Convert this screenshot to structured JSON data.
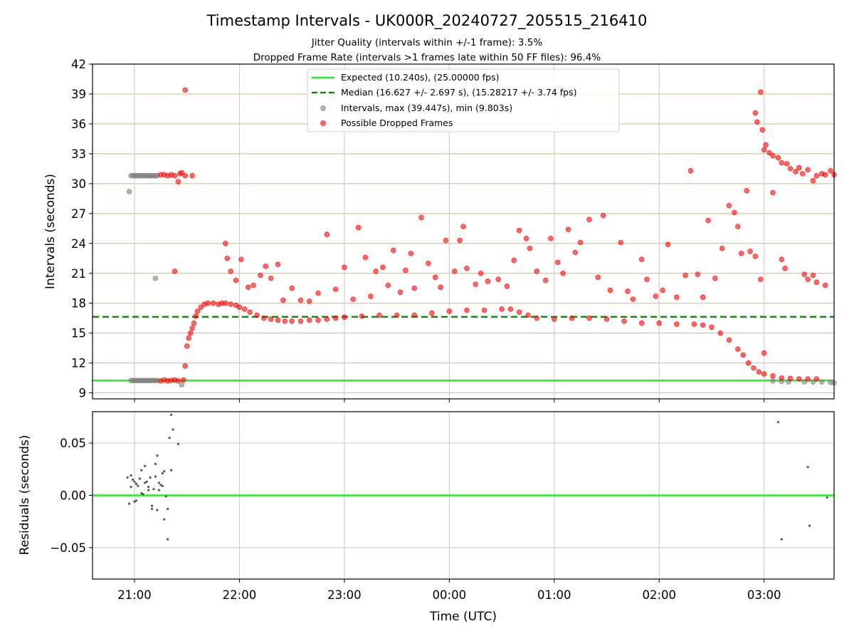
{
  "figure": {
    "title": "Timestamp Intervals - UK000R_20240727_205515_216410",
    "subtitle_1": "Jitter Quality (intervals within +/-1 frame): 3.5%",
    "subtitle_2": "Dropped Frame Rate (intervals >1 frames late within 50 FF files): 96.4%"
  },
  "colors": {
    "expected": "#22ee22",
    "median": "#118811",
    "intervals": "#808080",
    "dropped": "#ff0000",
    "hgrid": "#d4b870",
    "vgrid": "#c8c8c8"
  },
  "chart_data": [
    {
      "type": "scatter",
      "ylabel": "Intervals (seconds)",
      "xlim": [
        "20:36",
        "03:40"
      ],
      "ylim": [
        8.4,
        42
      ],
      "yticks": [
        "9",
        "12",
        "15",
        "18",
        "21",
        "24",
        "27",
        "30",
        "33",
        "36",
        "39",
        "42"
      ],
      "xticks": [
        "21:00",
        "22:00",
        "23:00",
        "00:00",
        "01:00",
        "02:00",
        "03:00"
      ],
      "grid": "horizontal and vertical",
      "legend_position": "upper-center",
      "legend": [
        "Expected (10.240s), (25.00000 fps)",
        "Median (16.627 +/- 2.697 s), (15.28217 +/- 3.74 fps)",
        "Intervals, max (39.447s), min (9.803s)",
        "Possible Dropped Frames"
      ],
      "expected_line": 10.24,
      "median_line": 16.627,
      "interval_points": [
        [
          "20:57",
          29.2
        ],
        [
          "20:58",
          30.8
        ],
        [
          "20:59",
          30.8
        ],
        [
          "21:00",
          30.8
        ],
        [
          "21:01",
          30.8
        ],
        [
          "21:02",
          30.8
        ],
        [
          "21:03",
          30.8
        ],
        [
          "21:04",
          30.8
        ],
        [
          "21:05",
          30.8
        ],
        [
          "21:06",
          30.8
        ],
        [
          "21:07",
          30.8
        ],
        [
          "21:08",
          30.8
        ],
        [
          "21:09",
          30.8
        ],
        [
          "21:10",
          30.8
        ],
        [
          "21:11",
          30.8
        ],
        [
          "21:12",
          30.8
        ],
        [
          "21:13",
          30.8
        ],
        [
          "20:58",
          10.24
        ],
        [
          "20:59",
          10.24
        ],
        [
          "21:00",
          10.24
        ],
        [
          "21:01",
          10.24
        ],
        [
          "21:02",
          10.24
        ],
        [
          "21:03",
          10.24
        ],
        [
          "21:04",
          10.24
        ],
        [
          "21:05",
          10.24
        ],
        [
          "21:06",
          10.24
        ],
        [
          "21:07",
          10.24
        ],
        [
          "21:08",
          10.24
        ],
        [
          "21:09",
          10.24
        ],
        [
          "21:10",
          10.24
        ],
        [
          "21:11",
          10.24
        ],
        [
          "21:12",
          10.24
        ],
        [
          "21:13",
          10.24
        ],
        [
          "21:12",
          20.5
        ],
        [
          "21:27",
          9.8
        ],
        [
          "03:05",
          10.2
        ],
        [
          "03:10",
          10.15
        ],
        [
          "03:14",
          10.1
        ],
        [
          "03:23",
          10.1
        ],
        [
          "03:28",
          10.1
        ],
        [
          "03:33",
          10.1
        ],
        [
          "03:38",
          10.05
        ],
        [
          "03:40",
          10.0
        ]
      ],
      "dropped_points": [
        [
          "21:15",
          30.9
        ],
        [
          "21:17",
          30.9
        ],
        [
          "21:19",
          30.8
        ],
        [
          "21:21",
          30.9
        ],
        [
          "21:23",
          30.8
        ],
        [
          "21:25",
          30.2
        ],
        [
          "21:26",
          31.0
        ],
        [
          "21:27",
          31.1
        ],
        [
          "21:29",
          30.8
        ],
        [
          "21:33",
          30.8
        ],
        [
          "21:29",
          39.4
        ],
        [
          "21:23",
          21.2
        ],
        [
          "21:15",
          10.2
        ],
        [
          "21:17",
          10.3
        ],
        [
          "21:19",
          10.2
        ],
        [
          "21:21",
          10.25
        ],
        [
          "21:23",
          10.3
        ],
        [
          "21:25",
          10.2
        ],
        [
          "21:28",
          10.3
        ],
        [
          "21:29",
          11.7
        ],
        [
          "21:30",
          13.7
        ],
        [
          "21:31",
          14.5
        ],
        [
          "21:32",
          15.0
        ],
        [
          "21:33",
          15.5
        ],
        [
          "21:34",
          16.0
        ],
        [
          "21:35",
          16.7
        ],
        [
          "21:36",
          17.2
        ],
        [
          "21:38",
          17.6
        ],
        [
          "21:40",
          17.9
        ],
        [
          "21:42",
          18.0
        ],
        [
          "21:45",
          18.0
        ],
        [
          "21:48",
          17.9
        ],
        [
          "21:50",
          18.0
        ],
        [
          "21:52",
          18.0
        ],
        [
          "21:55",
          17.9
        ],
        [
          "21:58",
          17.8
        ],
        [
          "22:00",
          17.6
        ],
        [
          "22:03",
          17.4
        ],
        [
          "22:06",
          17.1
        ],
        [
          "22:10",
          16.8
        ],
        [
          "22:14",
          16.5
        ],
        [
          "22:18",
          16.4
        ],
        [
          "22:22",
          16.3
        ],
        [
          "22:26",
          16.2
        ],
        [
          "22:30",
          16.2
        ],
        [
          "22:35",
          16.2
        ],
        [
          "22:40",
          16.3
        ],
        [
          "22:45",
          16.3
        ],
        [
          "22:50",
          16.4
        ],
        [
          "22:55",
          16.5
        ],
        [
          "23:00",
          16.6
        ],
        [
          "23:10",
          16.7
        ],
        [
          "23:20",
          16.8
        ],
        [
          "23:30",
          16.8
        ],
        [
          "23:40",
          16.8
        ],
        [
          "23:50",
          17.0
        ],
        [
          "00:00",
          17.2
        ],
        [
          "00:10",
          17.3
        ],
        [
          "00:20",
          17.3
        ],
        [
          "00:30",
          17.4
        ],
        [
          "00:35",
          17.4
        ],
        [
          "00:40",
          17.1
        ],
        [
          "00:45",
          16.8
        ],
        [
          "00:50",
          16.5
        ],
        [
          "01:00",
          16.4
        ],
        [
          "01:10",
          16.5
        ],
        [
          "01:20",
          16.5
        ],
        [
          "01:30",
          16.4
        ],
        [
          "01:40",
          16.2
        ],
        [
          "01:50",
          16.0
        ],
        [
          "02:00",
          16.0
        ],
        [
          "02:10",
          15.9
        ],
        [
          "02:20",
          15.9
        ],
        [
          "02:25",
          15.8
        ],
        [
          "02:30",
          15.6
        ],
        [
          "02:35",
          15.0
        ],
        [
          "02:40",
          14.3
        ],
        [
          "02:45",
          13.4
        ],
        [
          "02:48",
          12.8
        ],
        [
          "02:51",
          12.0
        ],
        [
          "02:54",
          11.5
        ],
        [
          "02:57",
          11.1
        ],
        [
          "03:00",
          10.9
        ],
        [
          "03:05",
          10.7
        ],
        [
          "03:10",
          10.5
        ],
        [
          "03:15",
          10.45
        ],
        [
          "03:20",
          10.4
        ],
        [
          "03:25",
          10.4
        ],
        [
          "03:30",
          10.4
        ],
        [
          "21:52",
          24.0
        ],
        [
          "21:55",
          21.2
        ],
        [
          "21:53",
          22.5
        ],
        [
          "21:58",
          20.3
        ],
        [
          "22:01",
          22.4
        ],
        [
          "22:05",
          19.6
        ],
        [
          "22:08",
          19.8
        ],
        [
          "22:12",
          20.8
        ],
        [
          "22:15",
          21.7
        ],
        [
          "22:18",
          20.5
        ],
        [
          "22:22",
          21.9
        ],
        [
          "22:25",
          18.3
        ],
        [
          "22:30",
          19.5
        ],
        [
          "22:35",
          18.3
        ],
        [
          "22:40",
          18.2
        ],
        [
          "22:45",
          19.0
        ],
        [
          "22:50",
          24.9
        ],
        [
          "22:55",
          19.4
        ],
        [
          "23:00",
          21.6
        ],
        [
          "23:05",
          18.4
        ],
        [
          "23:08",
          25.6
        ],
        [
          "23:12",
          22.6
        ],
        [
          "23:15",
          18.7
        ],
        [
          "23:18",
          21.2
        ],
        [
          "23:22",
          21.6
        ],
        [
          "23:25",
          19.8
        ],
        [
          "23:28",
          23.3
        ],
        [
          "23:32",
          19.1
        ],
        [
          "23:35",
          21.3
        ],
        [
          "23:38",
          23.0
        ],
        [
          "23:40",
          19.5
        ],
        [
          "23:44",
          26.6
        ],
        [
          "23:48",
          22.0
        ],
        [
          "23:52",
          20.6
        ],
        [
          "23:55",
          19.6
        ],
        [
          "23:58",
          24.3
        ],
        [
          "00:03",
          21.2
        ],
        [
          "00:06",
          24.3
        ],
        [
          "00:08",
          25.7
        ],
        [
          "00:10",
          21.5
        ],
        [
          "00:15",
          19.9
        ],
        [
          "00:18",
          21.0
        ],
        [
          "00:22",
          20.2
        ],
        [
          "00:28",
          20.4
        ],
        [
          "00:33",
          19.7
        ],
        [
          "00:37",
          22.3
        ],
        [
          "00:40",
          25.3
        ],
        [
          "00:44",
          24.5
        ],
        [
          "00:46",
          23.5
        ],
        [
          "00:50",
          21.2
        ],
        [
          "00:55",
          20.3
        ],
        [
          "00:58",
          24.5
        ],
        [
          "01:02",
          22.1
        ],
        [
          "01:05",
          21.0
        ],
        [
          "01:08",
          25.4
        ],
        [
          "01:12",
          23.1
        ],
        [
          "01:15",
          24.1
        ],
        [
          "01:20",
          26.4
        ],
        [
          "01:25",
          20.6
        ],
        [
          "01:28",
          26.8
        ],
        [
          "01:32",
          19.3
        ],
        [
          "01:38",
          24.1
        ],
        [
          "01:42",
          19.2
        ],
        [
          "01:45",
          18.4
        ],
        [
          "01:50",
          22.4
        ],
        [
          "01:53",
          20.4
        ],
        [
          "01:58",
          18.7
        ],
        [
          "02:02",
          19.3
        ],
        [
          "02:05",
          23.9
        ],
        [
          "02:10",
          18.6
        ],
        [
          "02:15",
          20.8
        ],
        [
          "02:18",
          31.3
        ],
        [
          "02:22",
          20.9
        ],
        [
          "02:25",
          18.6
        ],
        [
          "02:28",
          26.3
        ],
        [
          "02:32",
          20.5
        ],
        [
          "02:36",
          23.5
        ],
        [
          "02:40",
          27.8
        ],
        [
          "02:43",
          27.1
        ],
        [
          "02:45",
          25.7
        ],
        [
          "02:47",
          23.0
        ],
        [
          "02:50",
          29.3
        ],
        [
          "02:52",
          23.2
        ],
        [
          "02:55",
          22.7
        ],
        [
          "02:58",
          20.4
        ],
        [
          "03:00",
          13.0
        ],
        [
          "03:05",
          29.1
        ],
        [
          "03:10",
          22.4
        ],
        [
          "03:12",
          21.5
        ],
        [
          "02:55",
          37.1
        ],
        [
          "02:56",
          36.2
        ],
        [
          "02:58",
          39.2
        ],
        [
          "02:59",
          35.4
        ],
        [
          "03:00",
          33.4
        ],
        [
          "03:01",
          33.9
        ],
        [
          "03:03",
          33.1
        ],
        [
          "03:05",
          32.8
        ],
        [
          "03:08",
          32.6
        ],
        [
          "03:10",
          32.1
        ],
        [
          "03:13",
          32.0
        ],
        [
          "03:15",
          31.5
        ],
        [
          "03:18",
          31.2
        ],
        [
          "03:20",
          31.6
        ],
        [
          "03:22",
          31.0
        ],
        [
          "03:25",
          31.4
        ],
        [
          "03:28",
          30.3
        ],
        [
          "03:30",
          30.8
        ],
        [
          "03:33",
          31.0
        ],
        [
          "03:35",
          30.9
        ],
        [
          "03:38",
          31.3
        ],
        [
          "03:40",
          30.9
        ],
        [
          "03:23",
          20.9
        ],
        [
          "03:25",
          20.4
        ],
        [
          "03:28",
          20.8
        ],
        [
          "03:30",
          20.1
        ],
        [
          "03:35",
          19.8
        ]
      ]
    },
    {
      "type": "scatter",
      "xlabel": "Time (UTC)",
      "ylabel": "Residuals (seconds)",
      "xlim": [
        "20:36",
        "03:40"
      ],
      "ylim": [
        -0.08,
        0.08
      ],
      "yticks": [
        "0.05",
        "0.00",
        "−0.05"
      ],
      "xticks": [
        "21:00",
        "22:00",
        "23:00",
        "00:00",
        "01:00",
        "02:00",
        "03:00"
      ],
      "grid": "horizontal and vertical",
      "zero_line": 0.0,
      "points": [
        [
          "20:56",
          0.017
        ],
        [
          "20:57",
          -0.008
        ],
        [
          "20:58",
          0.008
        ],
        [
          "20:58",
          0.019
        ],
        [
          "20:59",
          0.015
        ],
        [
          "21:00",
          -0.006
        ],
        [
          "21:00",
          0.013
        ],
        [
          "21:01",
          0.011
        ],
        [
          "21:01",
          -0.005
        ],
        [
          "21:02",
          0.009
        ],
        [
          "21:03",
          0.016
        ],
        [
          "21:04",
          0.024
        ],
        [
          "21:04",
          0.002
        ],
        [
          "21:05",
          0.001
        ],
        [
          "21:06",
          0.028
        ],
        [
          "21:06",
          0.012
        ],
        [
          "21:07",
          0.013
        ],
        [
          "21:08",
          0.005
        ],
        [
          "21:08",
          0.008
        ],
        [
          "21:09",
          0.017
        ],
        [
          "21:10",
          -0.01
        ],
        [
          "21:10",
          -0.013
        ],
        [
          "21:11",
          0.006
        ],
        [
          "21:12",
          0.03
        ],
        [
          "21:12",
          0.018
        ],
        [
          "21:13",
          0.038
        ],
        [
          "21:13",
          -0.014
        ],
        [
          "21:14",
          0.005
        ],
        [
          "21:14",
          0.012
        ],
        [
          "21:15",
          0.01
        ],
        [
          "21:16",
          0.021
        ],
        [
          "21:16",
          0.009
        ],
        [
          "21:17",
          0.023
        ],
        [
          "21:17",
          -0.023
        ],
        [
          "21:18",
          -0.001
        ],
        [
          "21:19",
          -0.013
        ],
        [
          "21:19",
          -0.042
        ],
        [
          "21:20",
          0.055
        ],
        [
          "21:21",
          0.024
        ],
        [
          "21:21",
          0.077
        ],
        [
          "21:22",
          0.063
        ],
        [
          "21:25",
          0.049
        ],
        [
          "03:08",
          0.07
        ],
        [
          "03:10",
          -0.042
        ],
        [
          "03:25",
          0.027
        ],
        [
          "03:26",
          -0.029
        ],
        [
          "03:36",
          -0.002
        ]
      ]
    }
  ]
}
